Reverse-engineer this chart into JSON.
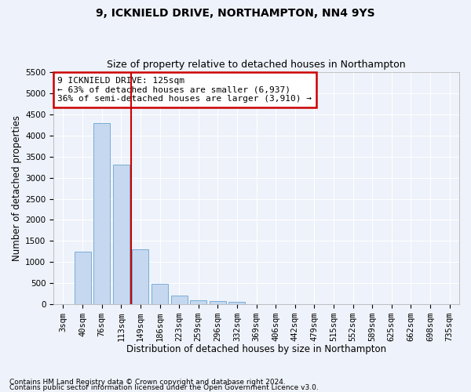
{
  "title1": "9, ICKNIELD DRIVE, NORTHAMPTON, NN4 9YS",
  "title2": "Size of property relative to detached houses in Northampton",
  "xlabel": "Distribution of detached houses by size in Northampton",
  "ylabel": "Number of detached properties",
  "categories": [
    "3sqm",
    "40sqm",
    "76sqm",
    "113sqm",
    "149sqm",
    "186sqm",
    "223sqm",
    "259sqm",
    "296sqm",
    "332sqm",
    "369sqm",
    "406sqm",
    "442sqm",
    "479sqm",
    "515sqm",
    "552sqm",
    "589sqm",
    "625sqm",
    "662sqm",
    "698sqm",
    "735sqm"
  ],
  "values": [
    0,
    1250,
    4300,
    3300,
    1300,
    490,
    200,
    100,
    75,
    50,
    0,
    0,
    0,
    0,
    0,
    0,
    0,
    0,
    0,
    0,
    0
  ],
  "bar_color": "#c5d8f0",
  "bar_edge_color": "#7aadd4",
  "vline_x": 3.5,
  "vline_color": "#cc0000",
  "annotation_text": "9 ICKNIELD DRIVE: 125sqm\n← 63% of detached houses are smaller (6,937)\n36% of semi-detached houses are larger (3,910) →",
  "annotation_box_color": "#cc0000",
  "ylim": [
    0,
    5500
  ],
  "yticks": [
    0,
    500,
    1000,
    1500,
    2000,
    2500,
    3000,
    3500,
    4000,
    4500,
    5000,
    5500
  ],
  "footnote1": "Contains HM Land Registry data © Crown copyright and database right 2024.",
  "footnote2": "Contains public sector information licensed under the Open Government Licence v3.0.",
  "background_color": "#eef2fa",
  "plot_bg_color": "#eef2fa",
  "grid_color": "#ffffff",
  "title1_fontsize": 10,
  "title2_fontsize": 9,
  "xlabel_fontsize": 8.5,
  "ylabel_fontsize": 8.5,
  "tick_fontsize": 7.5,
  "footnote_fontsize": 6.5
}
